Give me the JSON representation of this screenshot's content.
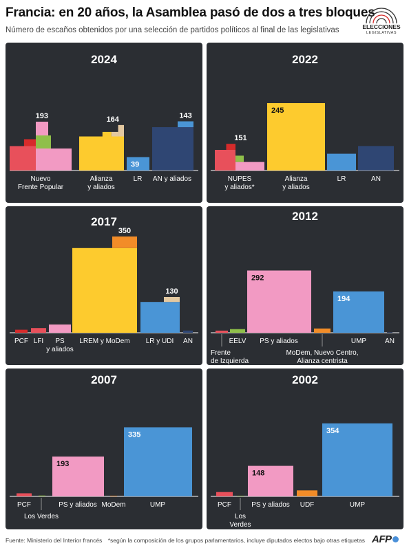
{
  "header": {
    "title": "Francia: en 20 años, la Asamblea pasó de dos a tres bloques",
    "subtitle": "Número de escaños obtenidos por una selección de partidos políticos al final de las legislativas"
  },
  "logo": {
    "line1": "ELECCIONES",
    "line2": "LEGISLATIVAS"
  },
  "footer": {
    "source": "Fuente: Ministerio del Interior francés",
    "note": "*según la composición de los grupos parlamentarios, incluye diputados electos bajo otras etiquetas",
    "brand": "AFP"
  },
  "colors": {
    "panel": "#2b2e33",
    "red": "#e8505b",
    "darkred": "#d62b2b",
    "green": "#8fbf4a",
    "pink": "#f29ac3",
    "yellow": "#fdcb2e",
    "blue": "#4a95d6",
    "navy": "#2f4673",
    "orange": "#f28c28",
    "tan": "#e3c8a0"
  },
  "chart_data": [
    {
      "type": "bar",
      "title": "2024",
      "groups": [
        {
          "label": [
            "Nuevo",
            "Frente Popular"
          ],
          "total": 193,
          "parts": [
            {
              "value": 71,
              "color": "red"
            },
            {
              "value": 20,
              "color": "darkred"
            },
            {
              "value": 38,
              "color": "green"
            },
            {
              "value": 64,
              "color": "pink"
            }
          ]
        },
        {
          "label": [
            "Alianza",
            "y aliados"
          ],
          "total": 164,
          "parts": [
            {
              "value": 99,
              "color": "yellow"
            },
            {
              "value": 33,
              "color": "yellow"
            },
            {
              "value": 32,
              "color": "tan"
            }
          ]
        },
        {
          "label": [
            "LR"
          ],
          "total": 39,
          "inner_label": "39",
          "parts": [
            {
              "value": 39,
              "color": "blue"
            }
          ]
        },
        {
          "label": [
            "AN y aliados"
          ],
          "total": 143,
          "parts": [
            {
              "value": 126,
              "color": "navy"
            },
            {
              "value": 17,
              "color": "blue"
            }
          ]
        }
      ]
    },
    {
      "type": "bar",
      "title": "2022",
      "groups": [
        {
          "label": [
            "NUPES",
            "y aliados*"
          ],
          "total": 151,
          "parts": [
            {
              "value": 75,
              "color": "red"
            },
            {
              "value": 22,
              "color": "darkred"
            },
            {
              "value": 23,
              "color": "green"
            },
            {
              "value": 31,
              "color": "pink"
            }
          ]
        },
        {
          "label": [
            "Alianza",
            "y aliados"
          ],
          "total": 245,
          "inner_label": "245",
          "parts": [
            {
              "value": 245,
              "color": "yellow"
            }
          ]
        },
        {
          "label": [
            "LR"
          ],
          "total": 61,
          "parts": [
            {
              "value": 61,
              "color": "blue"
            }
          ]
        },
        {
          "label": [
            "AN"
          ],
          "total": 89,
          "parts": [
            {
              "value": 89,
              "color": "navy"
            }
          ]
        }
      ]
    },
    {
      "type": "bar",
      "title": "2017",
      "groups": [
        {
          "label": [
            "PCF"
          ],
          "total": 11,
          "parts": [
            {
              "value": 11,
              "color": "darkred"
            }
          ]
        },
        {
          "label": [
            "LFI"
          ],
          "total": 17,
          "parts": [
            {
              "value": 17,
              "color": "red"
            }
          ]
        },
        {
          "label": [
            "PS",
            "y aliados"
          ],
          "total": 30,
          "parts": [
            {
              "value": 30,
              "color": "pink"
            }
          ]
        },
        {
          "label": [
            "LREM y MoDem"
          ],
          "total": 350,
          "parts": [
            {
              "value": 308,
              "color": "yellow"
            },
            {
              "value": 42,
              "color": "orange"
            }
          ]
        },
        {
          "label": [
            "LR y UDI"
          ],
          "total": 130,
          "parts": [
            {
              "value": 112,
              "color": "blue"
            },
            {
              "value": 18,
              "color": "tan"
            }
          ]
        },
        {
          "label": [
            "AN"
          ],
          "total": 8,
          "parts": [
            {
              "value": 8,
              "color": "navy"
            }
          ]
        }
      ]
    },
    {
      "type": "bar",
      "title": "2012",
      "groups": [
        {
          "label": [
            "Frente",
            "de Izquierda"
          ],
          "total": 10,
          "parts": [
            {
              "value": 10,
              "color": "red"
            }
          ]
        },
        {
          "label": [
            "EELV"
          ],
          "total": 17,
          "parts": [
            {
              "value": 17,
              "color": "green"
            }
          ]
        },
        {
          "label": [
            "PS y aliados"
          ],
          "total": 292,
          "inner_label": "292",
          "parts": [
            {
              "value": 292,
              "color": "pink"
            }
          ]
        },
        {
          "label": [
            "MoDem, Nuevo Centro,",
            "Alianza centrista"
          ],
          "total": 20,
          "parts": [
            {
              "value": 20,
              "color": "orange"
            }
          ]
        },
        {
          "label": [
            "UMP"
          ],
          "total": 194,
          "inner_label": "194",
          "parts": [
            {
              "value": 194,
              "color": "blue"
            }
          ]
        },
        {
          "label": [
            "AN"
          ],
          "total": 2,
          "parts": [
            {
              "value": 2,
              "color": "navy"
            }
          ]
        }
      ]
    },
    {
      "type": "bar",
      "title": "2007",
      "groups": [
        {
          "label": [
            "PCF"
          ],
          "total": 15,
          "parts": [
            {
              "value": 15,
              "color": "red"
            }
          ]
        },
        {
          "label": [
            "Los Verdes"
          ],
          "total": 4,
          "parts": [
            {
              "value": 4,
              "color": "green"
            }
          ]
        },
        {
          "label": [
            "PS y aliados"
          ],
          "total": 193,
          "inner_label": "193",
          "parts": [
            {
              "value": 193,
              "color": "pink"
            }
          ]
        },
        {
          "label": [
            "MoDem"
          ],
          "total": 3,
          "parts": [
            {
              "value": 3,
              "color": "orange"
            }
          ]
        },
        {
          "label": [
            "UMP"
          ],
          "total": 335,
          "inner_label": "335",
          "parts": [
            {
              "value": 335,
              "color": "blue"
            }
          ]
        }
      ]
    },
    {
      "type": "bar",
      "title": "2002",
      "groups": [
        {
          "label": [
            "PCF"
          ],
          "total": 21,
          "parts": [
            {
              "value": 21,
              "color": "red"
            }
          ]
        },
        {
          "label": [
            "Los",
            "Verdes"
          ],
          "total": 3,
          "parts": [
            {
              "value": 3,
              "color": "green"
            }
          ]
        },
        {
          "label": [
            "PS y aliados"
          ],
          "total": 148,
          "inner_label": "148",
          "parts": [
            {
              "value": 148,
              "color": "pink"
            }
          ]
        },
        {
          "label": [
            "UDF"
          ],
          "total": 29,
          "parts": [
            {
              "value": 29,
              "color": "orange"
            }
          ]
        },
        {
          "label": [
            "UMP"
          ],
          "total": 354,
          "inner_label": "354",
          "parts": [
            {
              "value": 354,
              "color": "blue"
            }
          ]
        }
      ]
    }
  ]
}
